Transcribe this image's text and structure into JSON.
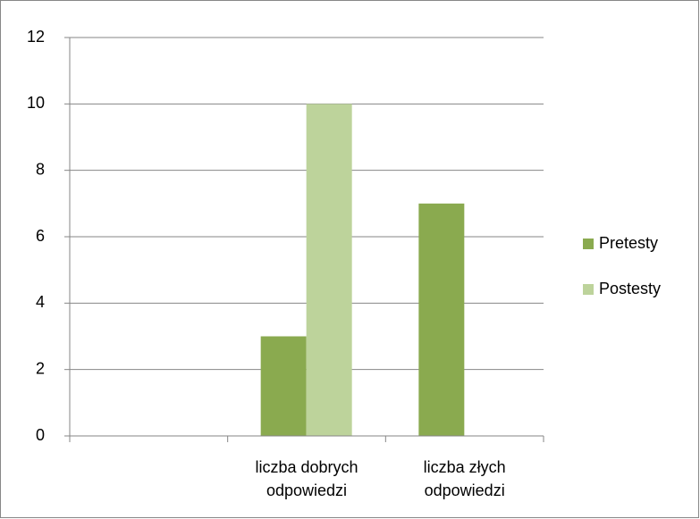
{
  "chart_data": {
    "type": "bar",
    "categories": [
      null,
      "liczba dobrych odpowiedzi",
      "liczba złych odpowiedzi"
    ],
    "series": [
      {
        "name": "Pretesty",
        "color": "#8aaa4f",
        "values": [
          null,
          3,
          7
        ]
      },
      {
        "name": "Postesty",
        "color": "#bdd39b",
        "values": [
          null,
          10,
          0
        ]
      }
    ],
    "ylim": [
      0,
      12
    ],
    "yticks": [
      0,
      2,
      4,
      6,
      8,
      10,
      12
    ],
    "grid": true,
    "legend": "right"
  }
}
